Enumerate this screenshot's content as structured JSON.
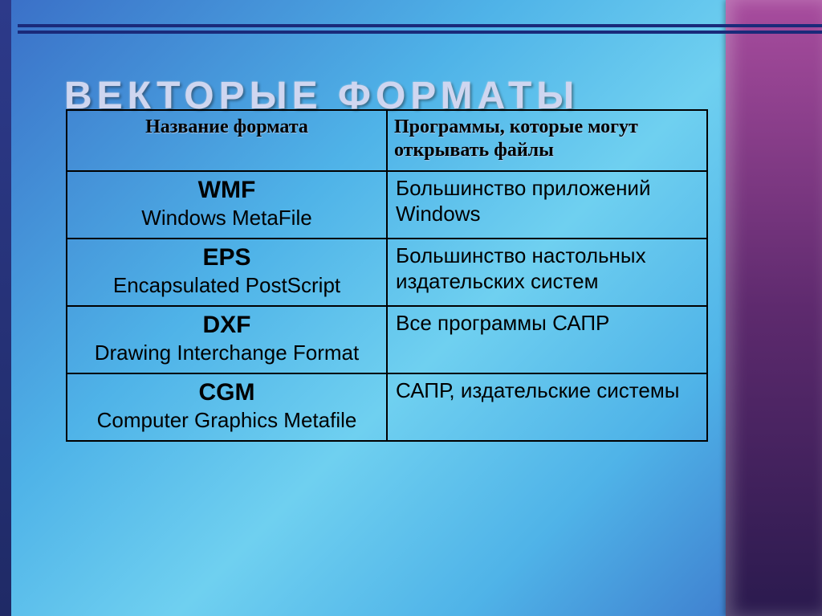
{
  "slide": {
    "title": "ВЕКТОРЫЕ ФОРМАТЫ",
    "title_color": "#cfd6f0",
    "title_fontsize": 48
  },
  "background": {
    "gradient_colors": [
      "#3a6fc7",
      "#4fb3e8",
      "#6fd0f0"
    ],
    "right_panel_colors": [
      "#a84c9e",
      "#5e2a6e",
      "#2a1a4e"
    ],
    "left_stripe_color": "#2d3a8a",
    "top_line_color": "#1a2a7a"
  },
  "table": {
    "border_color": "#000000",
    "columns": [
      "Название формата",
      "Программы, которые могут открывать файлы"
    ],
    "header_fontsize": 24,
    "abbr_fontsize": 30,
    "full_fontsize": 26,
    "desc_fontsize": 26,
    "rows": [
      {
        "abbr": "WMF",
        "full": "Windows MetaFile",
        "desc": "Большинство приложений Windows"
      },
      {
        "abbr": "EPS",
        "full": "Encapsulated PostScript",
        "desc": "Большинство настольных издательских систем"
      },
      {
        "abbr": "DXF",
        "full": "Drawing Interchange Format",
        "desc": "Все программы САПР"
      },
      {
        "abbr": "CGM",
        "full": "Computer Graphics Metafile",
        "desc": "САПР, издательские системы"
      }
    ]
  }
}
